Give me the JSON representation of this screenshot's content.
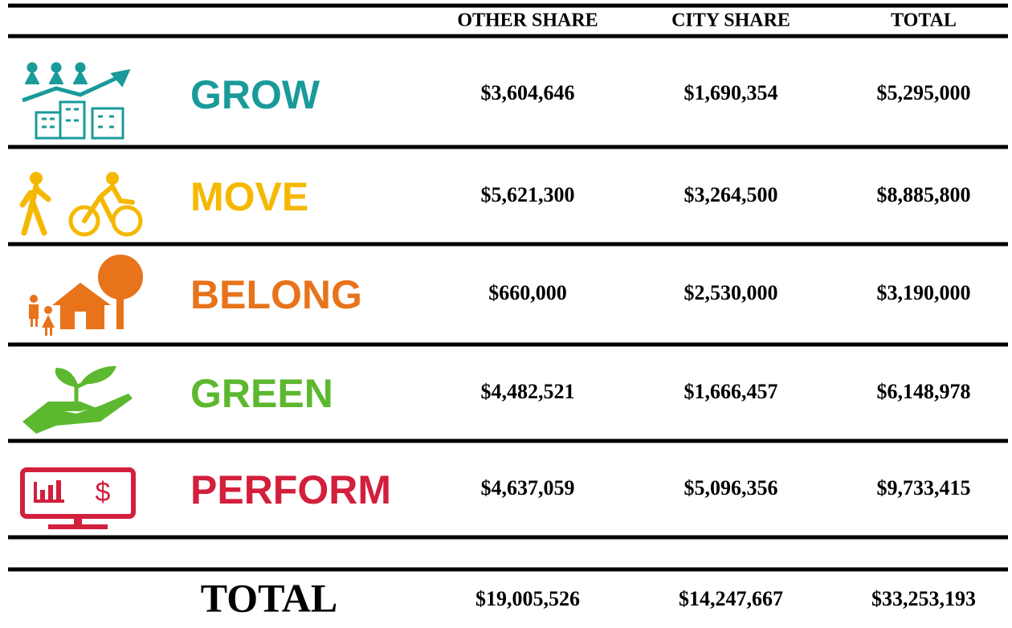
{
  "table": {
    "header": [
      "OTHER SHARE",
      "CITY SHARE",
      "TOTAL"
    ],
    "rows": [
      {
        "label": "GROW",
        "values": [
          "$3,604,646",
          "$1,690,354",
          "$5,295,000"
        ]
      },
      {
        "label": "MOVE",
        "values": [
          "$5,621,300",
          "$3,264,500",
          "$8,885,800"
        ]
      },
      {
        "label": "BELONG",
        "values": [
          "$660,000",
          "$2,530,000",
          "$3,190,000"
        ]
      },
      {
        "label": "GREEN",
        "values": [
          "$4,482,521",
          "$1,666,457",
          "$6,148,978"
        ]
      },
      {
        "label": "PERFORM",
        "values": [
          "$4,637,059",
          "$5,096,356",
          "$9,733,415"
        ]
      }
    ],
    "total": {
      "label": "TOTAL",
      "values": [
        "$19,005,526",
        "$14,247,667",
        "$33,253,193"
      ]
    }
  }
}
